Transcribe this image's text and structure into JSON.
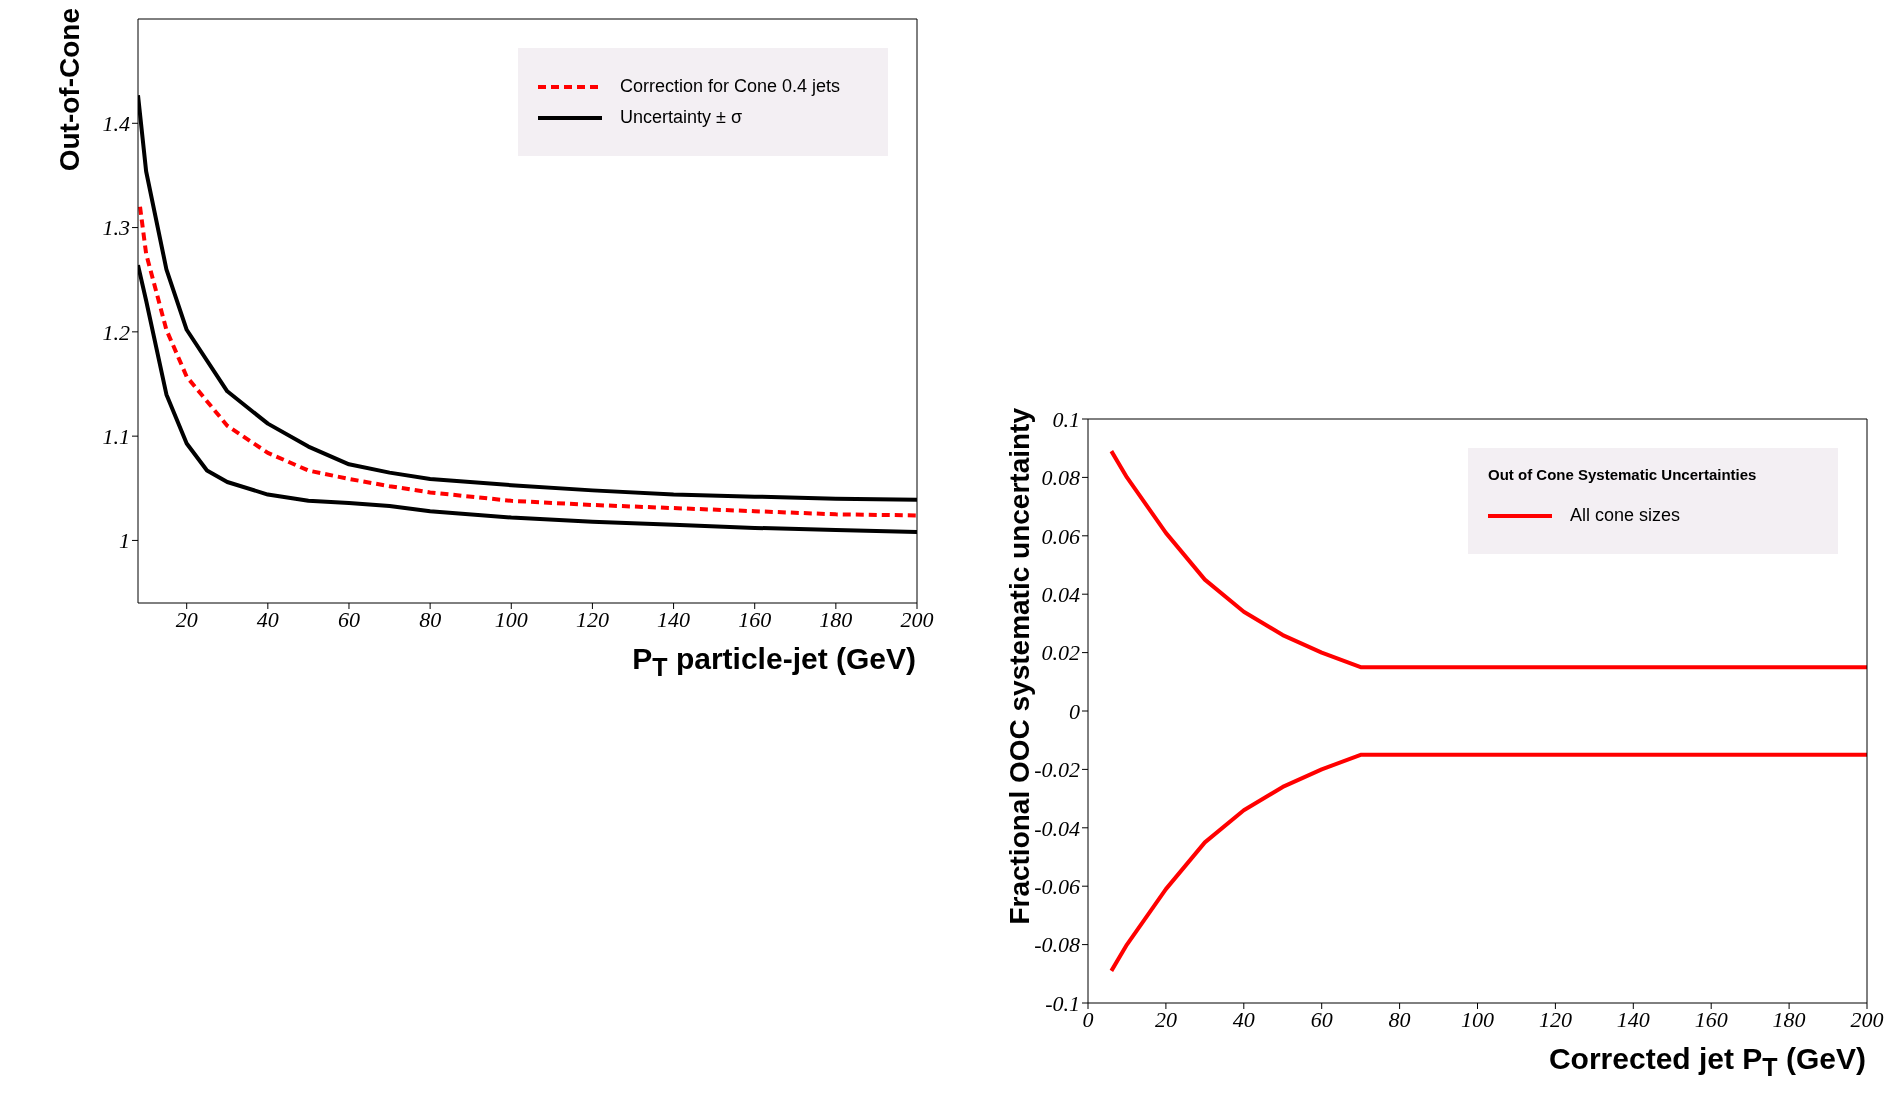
{
  "chart_data": [
    {
      "type": "line",
      "xlabel": "P$_{T}$ particle-jet (GeV)",
      "ylabel": "Out-of-Cone",
      "xlim": [
        8,
        200
      ],
      "xticks": [
        20,
        40,
        60,
        80,
        100,
        120,
        140,
        160,
        180,
        200
      ],
      "ylim": [
        0.94,
        1.5
      ],
      "yticks": [
        1,
        1.1,
        1.2,
        1.3,
        1.4
      ],
      "legend": "top right",
      "series": [
        {
          "name": "Correction for Cone 0.4 jets",
          "color": "#ff0000",
          "line_style": "dashed",
          "x": [
            8.5,
            10,
            15,
            20,
            30,
            40,
            50,
            60,
            70,
            80,
            100,
            120,
            140,
            160,
            180,
            200
          ],
          "values": [
            1.32,
            1.275,
            1.202,
            1.157,
            1.11,
            1.084,
            1.067,
            1.059,
            1.052,
            1.046,
            1.038,
            1.034,
            1.031,
            1.028,
            1.025,
            1.024
          ]
        },
        {
          "name": "Uncertainty ± σ",
          "color": "#000000",
          "line_style": "solid",
          "x": [
            8,
            10,
            15,
            20,
            30,
            40,
            50,
            60,
            70,
            80,
            100,
            120,
            140,
            160,
            180,
            200
          ],
          "values": [
            1.427,
            1.354,
            1.26,
            1.202,
            1.143,
            1.112,
            1.09,
            1.073,
            1.065,
            1.059,
            1.053,
            1.048,
            1.044,
            1.042,
            1.04,
            1.039
          ]
        },
        {
          "color": "#000000",
          "line_style": "solid",
          "x": [
            8,
            10,
            15,
            20,
            25,
            30,
            40,
            50,
            60,
            70,
            80,
            100,
            120,
            140,
            160,
            180,
            200
          ],
          "values": [
            1.264,
            1.23,
            1.14,
            1.093,
            1.067,
            1.056,
            1.044,
            1.038,
            1.036,
            1.033,
            1.028,
            1.022,
            1.018,
            1.015,
            1.012,
            1.01,
            1.008
          ]
        }
      ]
    },
    {
      "type": "line",
      "xlabel": "Corrected jet P$_{T}$ (GeV)",
      "ylabel": "Fractional OOC systematic uncertainty",
      "legend_title": "Out of Cone Systematic Uncertainties",
      "xlim": [
        0,
        200
      ],
      "xticks": [
        0,
        20,
        40,
        60,
        80,
        100,
        120,
        140,
        160,
        180,
        200
      ],
      "ylim": [
        -0.1,
        0.1
      ],
      "yticks": [
        -0.1,
        -0.08,
        -0.06,
        -0.04,
        -0.02,
        0,
        0.02,
        0.04,
        0.06,
        0.08,
        0.1
      ],
      "legend": "top right",
      "series": [
        {
          "name": "All cone sizes",
          "color": "#ff0000",
          "line_style": "solid",
          "x": [
            6,
            10,
            20,
            30,
            40,
            50,
            60,
            70,
            200
          ],
          "values": [
            0.089,
            0.08,
            0.061,
            0.045,
            0.034,
            0.026,
            0.02,
            0.015,
            0.015
          ]
        },
        {
          "color": "#ff0000",
          "line_style": "solid",
          "x": [
            6,
            10,
            20,
            30,
            40,
            50,
            60,
            70,
            200
          ],
          "values": [
            -0.089,
            -0.08,
            -0.061,
            -0.045,
            -0.034,
            -0.026,
            -0.02,
            -0.015,
            -0.015
          ]
        }
      ]
    }
  ]
}
